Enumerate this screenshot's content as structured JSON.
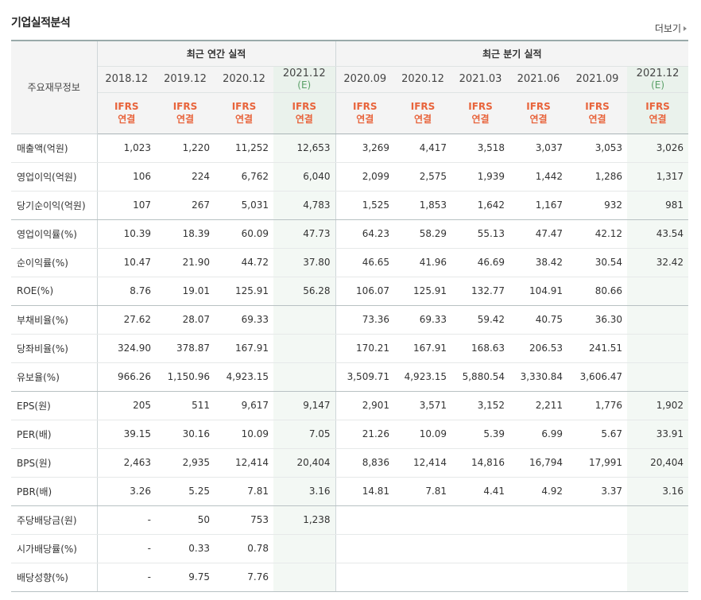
{
  "title": "기업실적분석",
  "more_label": "더보기",
  "header": {
    "row_label": "주요재무정보",
    "annual_group": "최근 연간 실적",
    "quarter_group": "최근 분기 실적",
    "periods": [
      {
        "label": "2018.12",
        "est": ""
      },
      {
        "label": "2019.12",
        "est": ""
      },
      {
        "label": "2020.12",
        "est": ""
      },
      {
        "label": "2021.12",
        "est": "(E)"
      },
      {
        "label": "2020.09",
        "est": ""
      },
      {
        "label": "2020.12",
        "est": ""
      },
      {
        "label": "2021.03",
        "est": ""
      },
      {
        "label": "2021.06",
        "est": ""
      },
      {
        "label": "2021.09",
        "est": ""
      },
      {
        "label": "2021.12",
        "est": "(E)"
      }
    ],
    "ifrs_line1": "IFRS",
    "ifrs_line2": "연결"
  },
  "rows": [
    {
      "label": "매출액(억원)",
      "values": [
        "1,023",
        "1,220",
        "11,252",
        "12,653",
        "3,269",
        "4,417",
        "3,518",
        "3,037",
        "3,053",
        "3,026"
      ]
    },
    {
      "label": "영업이익(억원)",
      "values": [
        "106",
        "224",
        "6,762",
        "6,040",
        "2,099",
        "2,575",
        "1,939",
        "1,442",
        "1,286",
        "1,317"
      ]
    },
    {
      "label": "당기순이익(억원)",
      "values": [
        "107",
        "267",
        "5,031",
        "4,783",
        "1,525",
        "1,853",
        "1,642",
        "1,167",
        "932",
        "981"
      ]
    },
    {
      "label": "영업이익률(%)",
      "values": [
        "10.39",
        "18.39",
        "60.09",
        "47.73",
        "64.23",
        "58.29",
        "55.13",
        "47.47",
        "42.12",
        "43.54"
      ]
    },
    {
      "label": "순이익률(%)",
      "values": [
        "10.47",
        "21.90",
        "44.72",
        "37.80",
        "46.65",
        "41.96",
        "46.69",
        "38.42",
        "30.54",
        "32.42"
      ]
    },
    {
      "label": "ROE(%)",
      "values": [
        "8.76",
        "19.01",
        "125.91",
        "56.28",
        "106.07",
        "125.91",
        "132.77",
        "104.91",
        "80.66",
        ""
      ]
    },
    {
      "label": "부채비율(%)",
      "values": [
        "27.62",
        "28.07",
        "69.33",
        "",
        "73.36",
        "69.33",
        "59.42",
        "40.75",
        "36.30",
        ""
      ]
    },
    {
      "label": "당좌비율(%)",
      "values": [
        "324.90",
        "378.87",
        "167.91",
        "",
        "170.21",
        "167.91",
        "168.63",
        "206.53",
        "241.51",
        ""
      ]
    },
    {
      "label": "유보율(%)",
      "values": [
        "966.26",
        "1,150.96",
        "4,923.15",
        "",
        "3,509.71",
        "4,923.15",
        "5,880.54",
        "3,330.84",
        "3,606.47",
        ""
      ]
    },
    {
      "label": "EPS(원)",
      "values": [
        "205",
        "511",
        "9,617",
        "9,147",
        "2,901",
        "3,571",
        "3,152",
        "2,211",
        "1,776",
        "1,902"
      ]
    },
    {
      "label": "PER(배)",
      "values": [
        "39.15",
        "30.16",
        "10.09",
        "7.05",
        "21.26",
        "10.09",
        "5.39",
        "6.99",
        "5.67",
        "33.91"
      ]
    },
    {
      "label": "BPS(원)",
      "values": [
        "2,463",
        "2,935",
        "12,414",
        "20,404",
        "8,836",
        "12,414",
        "14,816",
        "16,794",
        "17,991",
        "20,404"
      ]
    },
    {
      "label": "PBR(배)",
      "values": [
        "3.26",
        "5.25",
        "7.81",
        "3.16",
        "14.81",
        "7.81",
        "4.41",
        "4.92",
        "3.37",
        "3.16"
      ]
    },
    {
      "label": "주당배당금(원)",
      "values": [
        "-",
        "50",
        "753",
        "1,238",
        "",
        "",
        "",
        "",
        "",
        ""
      ]
    },
    {
      "label": "시가배당률(%)",
      "values": [
        "-",
        "0.33",
        "0.78",
        "",
        "",
        "",
        "",
        "",
        "",
        ""
      ]
    },
    {
      "label": "배당성향(%)",
      "values": [
        "-",
        "9.75",
        "7.76",
        "",
        "",
        "",
        "",
        "",
        "",
        ""
      ]
    }
  ]
}
